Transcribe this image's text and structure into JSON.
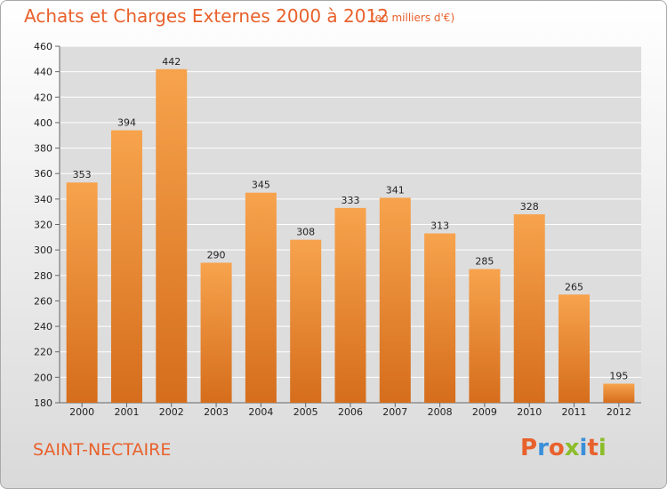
{
  "header": {
    "title": "Achats et Charges Externes 2000 à 2012",
    "subtitle": "(en milliers d'€)"
  },
  "footer": {
    "commune": "SAINT-NECTAIRE",
    "logo_text": "Proxiti",
    "logo_colors": [
      "#e8612c",
      "#3a8fd9",
      "#e8612c",
      "#8bbd2a",
      "#3a8fd9",
      "#e8612c",
      "#8bbd2a"
    ]
  },
  "colors": {
    "bar_light": "#f7a34d",
    "bar_dark": "#d56d1c",
    "accent": "#e8612c",
    "grid": "#ffffff",
    "plot_bg": "#dddddd"
  },
  "chart_data": {
    "type": "bar",
    "title": "Achats et Charges Externes 2000 à 2012",
    "subtitle": "(en milliers d'€)",
    "xlabel": "",
    "ylabel": "",
    "categories": [
      "2000",
      "2001",
      "2002",
      "2003",
      "2004",
      "2005",
      "2006",
      "2007",
      "2008",
      "2009",
      "2010",
      "2011",
      "2012"
    ],
    "values": [
      353,
      394,
      442,
      290,
      345,
      308,
      333,
      341,
      313,
      285,
      328,
      265,
      195
    ],
    "ylim": [
      180,
      460
    ],
    "yticks": [
      180,
      200,
      220,
      240,
      260,
      280,
      300,
      320,
      340,
      360,
      380,
      400,
      420,
      440,
      460
    ],
    "grid": true,
    "data_labels": true
  }
}
